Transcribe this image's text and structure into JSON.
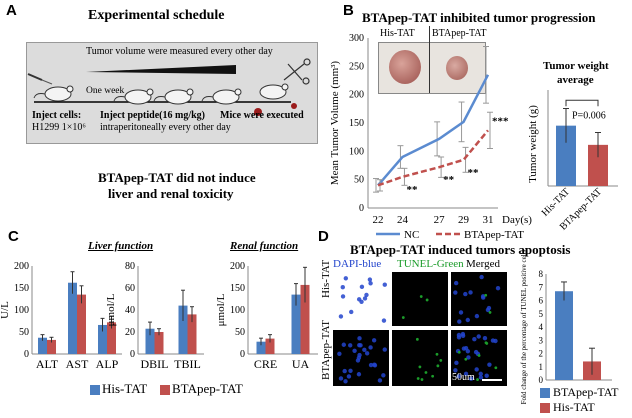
{
  "panels": {
    "A": {
      "label": "A",
      "title": "Experimental schedule",
      "tumor_note": "Tumor volume were measured every other day",
      "one_week": "One week",
      "inject_cells": "Inject cells:",
      "cell_line": "H1299 1×10⁶",
      "inject_peptide": "Inject peptide(16 mg/kg)",
      "injection_route": "intraperitoneally every other day",
      "executed": "Mice were executed"
    },
    "B": {
      "label": "B",
      "title": "BTApep-TAT inhibited tumor progression",
      "photo_label_1": "His-TAT",
      "photo_label_2": "BTApep-TAT",
      "weight_title_1": "Tumor weight",
      "weight_title_2": "average",
      "pvalue": "P=0.006"
    },
    "mid_title_1": "BTApep-TAT did not induce",
    "mid_title_2": "liver and renal toxicity",
    "C": {
      "label": "C",
      "liver_title": "Liver function",
      "renal_title": "Renal function",
      "legend_1": "His-TAT",
      "legend_2": "BTApep-TAT"
    },
    "D": {
      "label": "D",
      "title": "BTApep-TAT induced tumors apoptosis",
      "channel_1": "DAPI-blue",
      "channel_2": "TUNEL-Green",
      "channel_3": "Merged",
      "row_1": "His-TAT",
      "row_2": "BTApep-TAT",
      "scale_bar": "50um",
      "legend_1": "BTApep-TAT",
      "legend_2": "His-TAT"
    }
  },
  "colors": {
    "his": "#4a7ec0",
    "bta": "#c0504d",
    "nc_line": "#5b8bd0",
    "bta_line": "#c0504d",
    "dapi": "#2244cc",
    "tunel": "#1b9c2a"
  },
  "chart_data": [
    {
      "id": "tumor-volume",
      "type": "line",
      "ylabel": "Mean Tumor Volume (mm³)",
      "xlabel": "Day(s)",
      "x": [
        22,
        24,
        27,
        29,
        31
      ],
      "ylim": [
        0,
        300
      ],
      "yticks": [
        0,
        50,
        100,
        150,
        200,
        250,
        300
      ],
      "series": [
        {
          "name": "NC",
          "values": [
            40,
            90,
            122,
            152,
            235
          ],
          "errors": [
            12,
            20,
            30,
            35,
            50
          ]
        },
        {
          "name": "BTApep-TAT",
          "values": [
            40,
            55,
            72,
            85,
            137
          ],
          "errors": [
            10,
            15,
            18,
            22,
            32
          ]
        }
      ],
      "annotations": [
        {
          "x": 24,
          "text": "**"
        },
        {
          "x": 27,
          "text": "**"
        },
        {
          "x": 29,
          "text": "**"
        },
        {
          "x": 31,
          "text": "***"
        }
      ],
      "legend": "bottom"
    },
    {
      "id": "tumor-weight",
      "type": "bar",
      "ylabel": "Tumor weight (g)",
      "categories": [
        "His-TAT",
        "BTApep-TAT"
      ],
      "values": [
        0.88,
        0.6
      ],
      "errors": [
        0.25,
        0.18
      ],
      "ylim": [
        0,
        1.4
      ],
      "annotation": "P=0.006"
    },
    {
      "id": "liver-ul",
      "type": "bar",
      "ylabel": "U/L",
      "categories": [
        "ALT",
        "AST",
        "ALP"
      ],
      "ylim": [
        0,
        200
      ],
      "yticks": [
        0,
        50,
        100,
        150,
        200
      ],
      "series": [
        {
          "name": "His-TAT",
          "values": [
            37,
            162,
            66
          ],
          "errors": [
            7,
            25,
            15
          ]
        },
        {
          "name": "BTApep-TAT",
          "values": [
            32,
            135,
            72
          ],
          "errors": [
            6,
            20,
            14
          ]
        }
      ]
    },
    {
      "id": "liver-umol",
      "type": "bar",
      "ylabel": "μmol/L",
      "categories": [
        "DBIL",
        "TBIL"
      ],
      "ylim": [
        0,
        80
      ],
      "yticks": [
        0,
        20,
        40,
        60,
        80
      ],
      "series": [
        {
          "name": "His-TAT",
          "values": [
            23,
            44
          ],
          "errors": [
            6,
            14
          ]
        },
        {
          "name": "BTApep-TAT",
          "values": [
            20,
            36
          ],
          "errors": [
            3,
            7
          ]
        }
      ]
    },
    {
      "id": "renal",
      "type": "bar",
      "ylabel": "μmol/L",
      "categories": [
        "CRE",
        "UA"
      ],
      "ylim": [
        0,
        200
      ],
      "yticks": [
        0,
        50,
        100,
        150,
        200
      ],
      "series": [
        {
          "name": "His-TAT",
          "values": [
            28,
            135
          ],
          "errors": [
            8,
            25
          ]
        },
        {
          "name": "BTApep-TAT",
          "values": [
            35,
            157
          ],
          "errors": [
            9,
            40
          ]
        }
      ]
    },
    {
      "id": "tunel",
      "type": "bar",
      "ylabel": "Fold change of the percentage of TUNEL positive cells",
      "categories": [
        "BTApep-TAT",
        "His-TAT"
      ],
      "values": [
        6.7,
        1.4
      ],
      "errors": [
        0.7,
        1.0
      ],
      "ylim": [
        0,
        8
      ],
      "yticks": [
        0,
        1,
        2,
        3,
        4,
        5,
        6,
        7,
        8
      ]
    }
  ]
}
